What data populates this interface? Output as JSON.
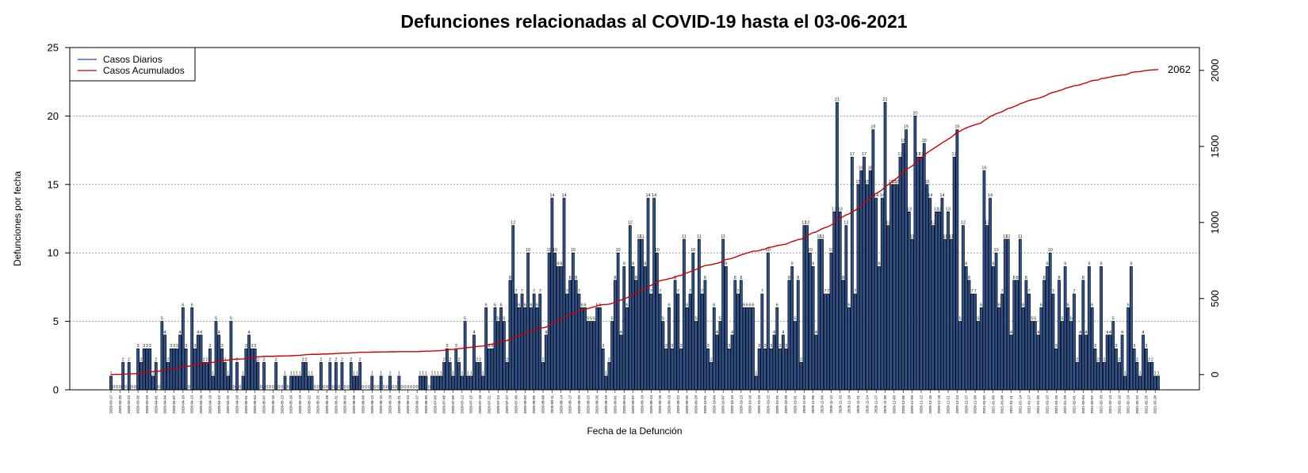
{
  "chart_data": {
    "type": "bar",
    "title": "Defunciones relacionadas al COVID-19 hasta el 03-06-2021",
    "xlabel": "Fecha de la Defunción",
    "ylabel": "Defunciones por fecha",
    "ylim": [
      0,
      25
    ],
    "y2lim": [
      -100,
      2150
    ],
    "yticks": [
      "0",
      "5",
      "10",
      "15",
      "20",
      "25"
    ],
    "y2ticks": [
      "0",
      "500",
      "1000",
      "1500",
      "2000"
    ],
    "grid": "horizontal dotted",
    "legend_position": "top-left",
    "start_date": "2020-03-17",
    "end_date": "2021-06-03",
    "date_tick_step": 3,
    "colors": {
      "bar_fill": "#2f5597",
      "bar_stroke": "#000000",
      "line": "#cc0000",
      "grid": "#888888"
    },
    "series": [
      {
        "name": "Casos Diarios",
        "color": "#1f4e9a",
        "values": [
          1,
          0,
          0,
          0,
          2,
          0,
          2,
          0,
          0,
          3,
          2,
          3,
          3,
          3,
          1,
          2,
          0,
          5,
          4,
          2,
          3,
          3,
          3,
          4,
          6,
          3,
          0,
          6,
          3,
          4,
          4,
          2,
          2,
          3,
          1,
          5,
          4,
          3,
          2,
          1,
          5,
          0,
          2,
          0,
          1,
          3,
          4,
          3,
          3,
          2,
          0,
          2,
          0,
          0,
          0,
          2,
          0,
          0,
          1,
          0,
          1,
          1,
          1,
          1,
          2,
          2,
          1,
          1,
          0,
          0,
          2,
          0,
          0,
          2,
          0,
          2,
          0,
          2,
          0,
          0,
          2,
          1,
          1,
          2,
          0,
          0,
          0,
          1,
          0,
          0,
          1,
          0,
          0,
          1,
          0,
          0,
          1,
          0,
          0,
          0,
          0,
          0,
          0,
          1,
          1,
          1,
          0,
          1,
          1,
          1,
          1,
          2,
          3,
          2,
          1,
          3,
          2,
          1,
          5,
          1,
          1,
          4,
          2,
          2,
          1,
          6,
          3,
          3,
          6,
          5,
          6,
          5,
          2,
          8,
          12,
          7,
          6,
          7,
          6,
          10,
          6,
          7,
          6,
          7,
          2,
          4,
          10,
          14,
          10,
          9,
          9,
          14,
          7,
          8,
          10,
          8,
          7,
          6,
          6,
          5,
          5,
          5,
          6,
          6,
          3,
          1,
          2,
          5,
          8,
          10,
          4,
          9,
          6,
          12,
          9,
          8,
          11,
          11,
          9,
          14,
          7,
          14,
          10,
          7,
          5,
          3,
          6,
          3,
          8,
          7,
          3,
          11,
          6,
          7,
          10,
          5,
          11,
          7,
          8,
          3,
          2,
          6,
          4,
          5,
          11,
          9,
          3,
          4,
          8,
          7,
          8,
          6,
          6,
          6,
          6,
          1,
          3,
          7,
          3,
          10,
          3,
          4,
          6,
          3,
          4,
          3,
          8,
          9,
          5,
          8,
          2,
          12,
          12,
          10,
          9,
          4,
          11,
          11,
          7,
          7,
          10,
          13,
          21,
          13,
          8,
          12,
          6,
          17,
          7,
          15,
          16,
          17,
          15,
          16,
          19,
          14,
          9,
          14,
          21,
          12,
          15,
          15,
          15,
          17,
          18,
          19,
          13,
          11,
          20,
          17,
          17,
          18,
          15,
          14,
          12,
          13,
          13,
          14,
          11,
          13,
          11,
          17,
          19,
          5,
          12,
          9,
          8,
          7,
          7,
          5,
          6,
          16,
          12,
          14,
          9,
          10,
          6,
          7,
          11,
          11,
          4,
          8,
          8,
          11,
          6,
          8,
          7,
          5,
          5,
          4,
          6,
          8,
          9,
          10,
          7,
          3,
          8,
          5,
          9,
          6,
          5,
          7,
          2,
          4,
          8,
          4,
          9,
          6,
          3,
          2,
          9,
          2,
          4,
          4,
          5,
          3,
          2,
          4,
          1,
          6,
          9,
          3,
          2,
          1,
          4,
          3,
          2,
          2,
          1,
          1
        ]
      },
      {
        "name": "Casos Acumulados",
        "color": "#cc0000",
        "final_value": "2062"
      }
    ]
  }
}
